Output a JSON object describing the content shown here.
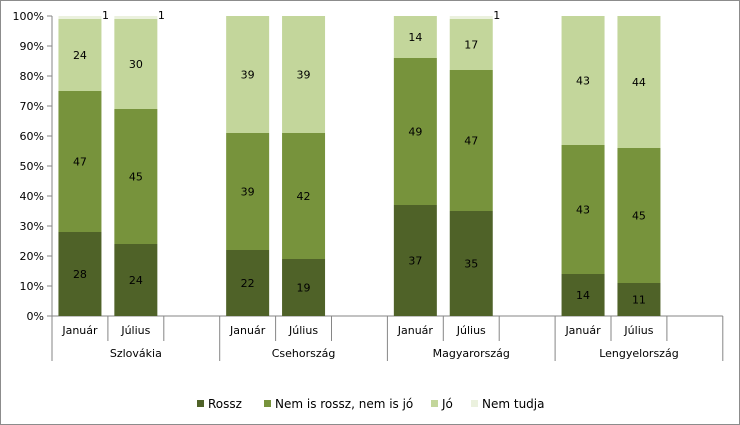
{
  "chart_data": {
    "type": "bar",
    "stacked": true,
    "percent": true,
    "groups": [
      {
        "label": "Szlovákia",
        "categories": [
          "Január",
          "Július"
        ]
      },
      {
        "label": "Csehország",
        "categories": [
          "Január",
          "Július"
        ]
      },
      {
        "label": "Magyarország",
        "categories": [
          "Január",
          "Július"
        ]
      },
      {
        "label": "Lengyelország",
        "categories": [
          "Január",
          "Július"
        ]
      }
    ],
    "series": [
      {
        "name": "Rossz",
        "color": "#4f6228",
        "values": [
          28,
          24,
          22,
          19,
          37,
          35,
          14,
          11
        ],
        "labels": [
          "28",
          "24",
          "22",
          "19",
          "37",
          "35",
          "14",
          "11"
        ]
      },
      {
        "name": "Nem is rossz, nem is jó",
        "color": "#77933c",
        "values": [
          47,
          45,
          39,
          42,
          49,
          47,
          43,
          45
        ],
        "labels": [
          "47",
          "45",
          "39",
          "42",
          "49",
          "47",
          "43",
          "45"
        ]
      },
      {
        "name": "Jó",
        "color": "#c3d69b",
        "values": [
          24,
          30,
          39,
          39,
          14,
          17,
          43,
          44
        ],
        "labels": [
          "24",
          "30",
          "39",
          "39",
          "14",
          "17",
          "43",
          "44"
        ]
      },
      {
        "name": "Nem tudja",
        "color": "#ebf1de",
        "values": [
          1,
          1,
          0,
          0,
          0,
          1,
          0,
          0
        ],
        "labels": [
          "1",
          "1",
          "",
          "",
          "",
          "1",
          "",
          ""
        ]
      }
    ],
    "yticks": [
      "0%",
      "10%",
      "20%",
      "30%",
      "40%",
      "50%",
      "60%",
      "70%",
      "80%",
      "90%",
      "100%"
    ],
    "ylim": [
      0,
      100
    ],
    "grid": false,
    "legend": "bottom"
  }
}
